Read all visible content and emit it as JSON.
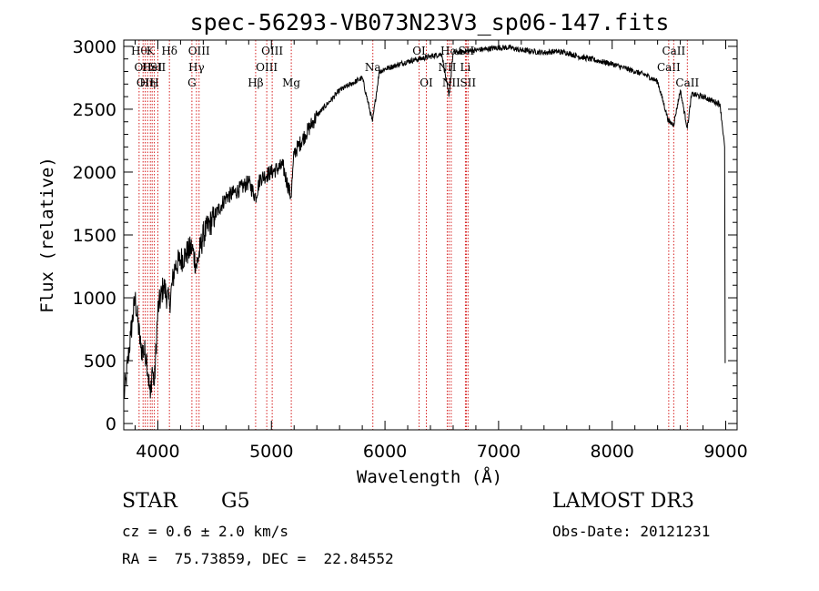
{
  "chart_data": {
    "type": "line",
    "title": "spec-56293-VB073N23V3_sp06-147.fits",
    "xlabel": "Wavelength (Å)",
    "ylabel": "Flux (relative)",
    "xlim": [
      3700,
      9100
    ],
    "ylim": [
      -50,
      3050
    ],
    "xticks": [
      4000,
      5000,
      6000,
      7000,
      8000,
      9000
    ],
    "xtick_labels": [
      "4000",
      "5000",
      "6000",
      "7000",
      "8000",
      "9000"
    ],
    "yticks": [
      0,
      500,
      1000,
      1500,
      2000,
      2500,
      3000
    ],
    "ytick_labels": [
      "0",
      "500",
      "1000",
      "1500",
      "2000",
      "2500",
      "3000"
    ],
    "grid": false,
    "series": [
      {
        "name": "flux",
        "x": [
          3700,
          3720,
          3760,
          3800,
          3850,
          3900,
          3934,
          3950,
          3969,
          4000,
          4050,
          4102,
          4150,
          4200,
          4250,
          4300,
          4340,
          4400,
          4500,
          4600,
          4700,
          4800,
          4861,
          4900,
          5000,
          5100,
          5172,
          5200,
          5300,
          5400,
          5500,
          5600,
          5700,
          5800,
          5890,
          5950,
          6000,
          6100,
          6200,
          6300,
          6400,
          6500,
          6563,
          6600,
          6700,
          6800,
          6900,
          7000,
          7100,
          7200,
          7300,
          7400,
          7500,
          7600,
          7700,
          7800,
          7900,
          8000,
          8100,
          8200,
          8300,
          8400,
          8498,
          8542,
          8600,
          8662,
          8700,
          8800,
          8900,
          8950,
          8990,
          8995
        ],
        "y": [
          200,
          350,
          700,
          1000,
          600,
          550,
          200,
          450,
          300,
          900,
          1100,
          950,
          1250,
          1300,
          1350,
          1400,
          1250,
          1500,
          1650,
          1800,
          1850,
          1920,
          1800,
          1950,
          2000,
          2050,
          1800,
          2150,
          2300,
          2450,
          2550,
          2650,
          2700,
          2750,
          2400,
          2800,
          2820,
          2850,
          2880,
          2900,
          2920,
          2940,
          2600,
          2950,
          2960,
          2970,
          2980,
          2990,
          2990,
          2970,
          2960,
          2950,
          2960,
          2950,
          2920,
          2900,
          2880,
          2860,
          2830,
          2800,
          2770,
          2720,
          2400,
          2380,
          2650,
          2350,
          2620,
          2600,
          2560,
          2540,
          2200,
          480
        ]
      }
    ],
    "line_markers": [
      {
        "wl": 3835,
        "label": "Hθ",
        "row": 1
      },
      {
        "wl": 3870,
        "label": "OII",
        "row": 2
      },
      {
        "wl": 3889,
        "label": "OII",
        "row": 3
      },
      {
        "wl": 3910,
        "label": "Hη",
        "row": 3
      },
      {
        "wl": 3934,
        "label": "K",
        "row": 1
      },
      {
        "wl": 3950,
        "label": "HeI",
        "row": 2
      },
      {
        "wl": 3969,
        "label": "H",
        "row": 3
      },
      {
        "wl": 4000,
        "label": "SII",
        "row": 2
      },
      {
        "wl": 4102,
        "label": "Hδ",
        "row": 1
      },
      {
        "wl": 4300,
        "label": "G",
        "row": 3
      },
      {
        "wl": 4340,
        "label": "Hγ",
        "row": 2
      },
      {
        "wl": 4363,
        "label": "OIII",
        "row": 1
      },
      {
        "wl": 4861,
        "label": "Hβ",
        "row": 3
      },
      {
        "wl": 4959,
        "label": "OIII",
        "row": 2
      },
      {
        "wl": 5007,
        "label": "OIII",
        "row": 1
      },
      {
        "wl": 5175,
        "label": "Mg",
        "row": 3
      },
      {
        "wl": 5893,
        "label": "Na",
        "row": 2
      },
      {
        "wl": 6300,
        "label": "OI",
        "row": 1
      },
      {
        "wl": 6364,
        "label": "OI",
        "row": 3
      },
      {
        "wl": 6548,
        "label": "NII",
        "row": 2
      },
      {
        "wl": 6563,
        "label": "Hα",
        "row": 1
      },
      {
        "wl": 6583,
        "label": "NII",
        "row": 3
      },
      {
        "wl": 6708,
        "label": "Li",
        "row": 2
      },
      {
        "wl": 6716,
        "label": "SII",
        "row": 1
      },
      {
        "wl": 6731,
        "label": "SII",
        "row": 3
      },
      {
        "wl": 8498,
        "label": "CaII",
        "row": 2
      },
      {
        "wl": 8542,
        "label": "CaII",
        "row": 1
      },
      {
        "wl": 8662,
        "label": "CaII",
        "row": 3
      }
    ]
  },
  "info": {
    "object_class": "STAR",
    "subclass": "G5",
    "cz": "cz = 0.6 ± 2.0 km/s",
    "coords": "RA =  75.73859, DEC =  22.84552",
    "survey": "LAMOST DR3",
    "obs_date": "Obs-Date: 20121231"
  },
  "colors": {
    "spectrum": "#000000",
    "marker_line": "#d62020",
    "axes": "#000000"
  }
}
